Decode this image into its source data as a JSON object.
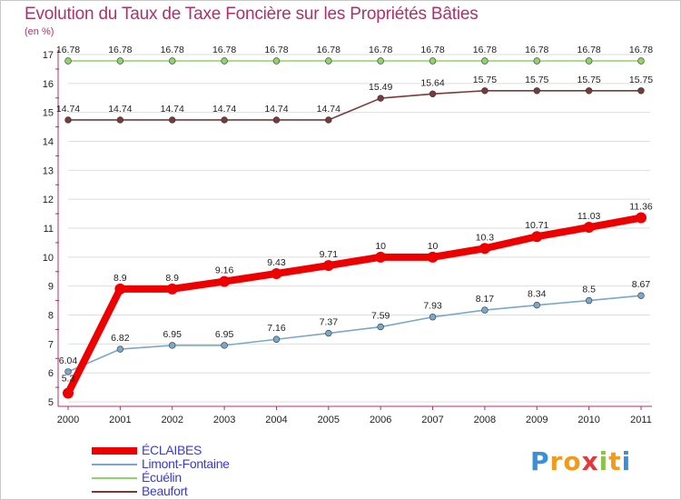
{
  "title": "Evolution du Taux de Taxe Foncière sur les Propriétés Bâties",
  "unit_label": "(en %)",
  "logo": {
    "letters": [
      "P",
      "r",
      "o",
      "x",
      "i",
      "t",
      "i"
    ],
    "colors": [
      "#3b8fd6",
      "#f29a1c",
      "#f29a1c",
      "#e13a3a",
      "#8bc34a",
      "#f29a1c",
      "#3b8fd6"
    ]
  },
  "chart_data": {
    "type": "line",
    "title": "Evolution du Taux de Taxe Foncière sur les Propriétés Bâties",
    "ylabel": "(en %)",
    "xlabel": "",
    "categories": [
      "2000",
      "2001",
      "2002",
      "2003",
      "2004",
      "2005",
      "2006",
      "2007",
      "2008",
      "2009",
      "2010",
      "2011"
    ],
    "ylim": [
      5,
      17
    ],
    "yticks": [
      "5",
      "6",
      "7",
      "8",
      "9",
      "10",
      "11",
      "12",
      "13",
      "14",
      "15",
      "16",
      "17"
    ],
    "legend_position": "bottom-left",
    "series": [
      {
        "name": "ÉCLAIBES",
        "color": "#ee0000",
        "values": [
          5.3,
          8.9,
          8.9,
          9.16,
          9.43,
          9.71,
          10,
          10,
          10.3,
          10.71,
          11.03,
          11.36
        ],
        "labels": [
          "5.3",
          "8.9",
          "8.9",
          "9.16",
          "9.43",
          "9.71",
          "10",
          "10",
          "10.3",
          "10.71",
          "11.03",
          "11.36"
        ]
      },
      {
        "name": "Limont-Fontaine",
        "color": "#7aa7cc",
        "values": [
          6.04,
          6.82,
          6.95,
          6.95,
          7.16,
          7.37,
          7.59,
          7.93,
          8.17,
          8.34,
          8.5,
          8.67
        ],
        "labels": [
          "6.04",
          "6.82",
          "6.95",
          "6.95",
          "7.16",
          "7.37",
          "7.59",
          "7.93",
          "8.17",
          "8.34",
          "8.5",
          "8.67"
        ]
      },
      {
        "name": "Écuélin",
        "color": "#8fd36a",
        "values": [
          16.78,
          16.78,
          16.78,
          16.78,
          16.78,
          16.78,
          16.78,
          16.78,
          16.78,
          16.78,
          16.78,
          16.78
        ],
        "labels": [
          "16.78",
          "16.78",
          "16.78",
          "16.78",
          "16.78",
          "16.78",
          "16.78",
          "16.78",
          "16.78",
          "16.78",
          "16.78",
          "16.78"
        ]
      },
      {
        "name": "Beaufort",
        "color": "#7a3a3a",
        "values": [
          14.74,
          14.74,
          14.74,
          14.74,
          14.74,
          14.74,
          15.49,
          15.64,
          15.75,
          15.75,
          15.75,
          15.75
        ],
        "labels": [
          "14.74",
          "14.74",
          "14.74",
          "14.74",
          "14.74",
          "14.74",
          "15.49",
          "15.64",
          "15.75",
          "15.75",
          "15.75",
          "15.75"
        ]
      }
    ]
  }
}
